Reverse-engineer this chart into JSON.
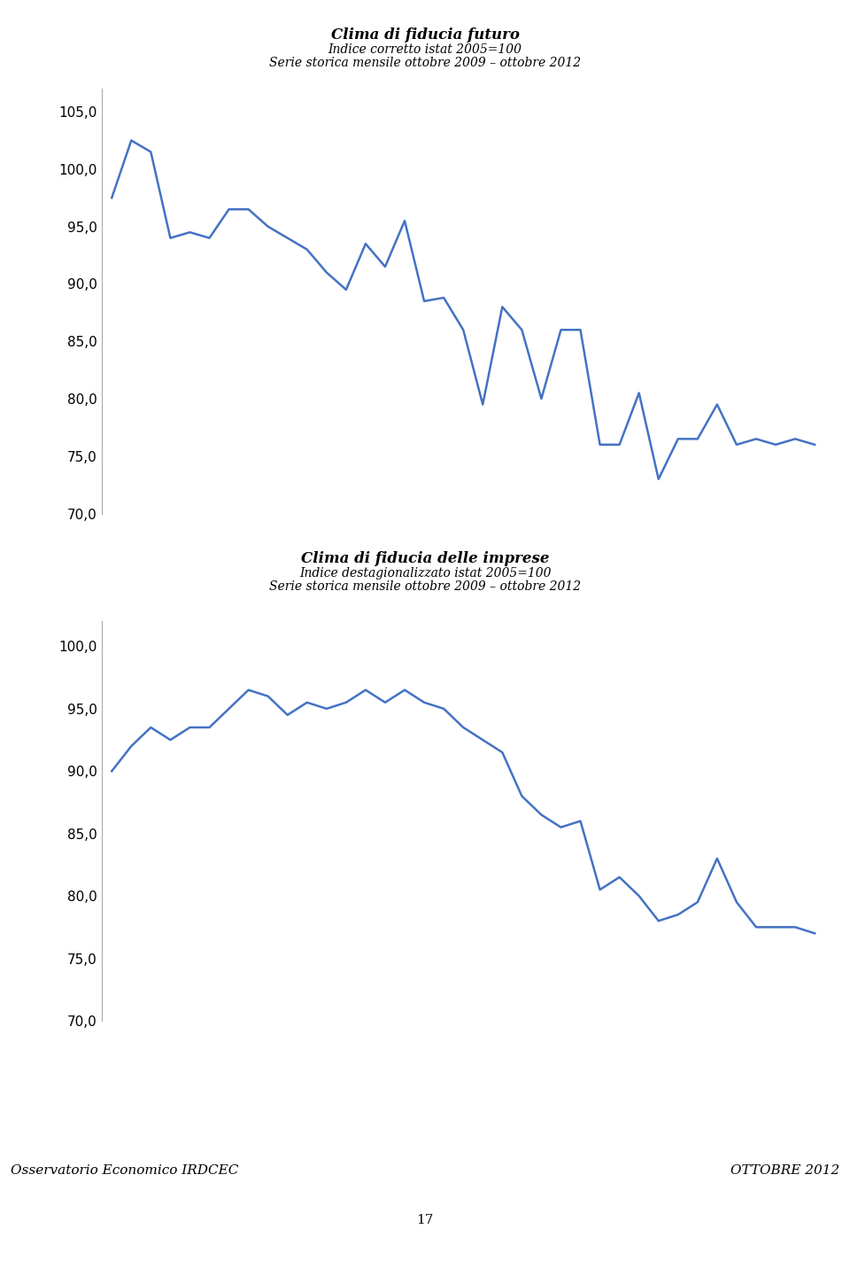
{
  "title1_line1": "Clima di fiducia futuro",
  "title1_line2": "Indice corretto istat 2005=100",
  "title1_line3": "Serie storica mensile ottobre 2009 – ottobre 2012",
  "title2_line1": "Clima di fiducia delle imprese",
  "title2_line2": "Indice destagionalizzato istat 2005=100",
  "title2_line3": "Serie storica mensile ottobre 2009 – ottobre 2012",
  "line_color": "#4472C4",
  "line_width": 1.8,
  "ylim1": [
    70.0,
    107.0
  ],
  "ylim2": [
    70.0,
    102.0
  ],
  "yticks1": [
    70.0,
    75.0,
    80.0,
    85.0,
    90.0,
    95.0,
    100.0,
    105.0
  ],
  "yticks2": [
    70.0,
    75.0,
    80.0,
    85.0,
    90.0,
    95.0,
    100.0
  ],
  "series1": [
    97.5,
    102.5,
    101.5,
    94.0,
    94.5,
    94.0,
    96.5,
    96.5,
    95.0,
    94.0,
    93.0,
    91.0,
    89.5,
    93.5,
    91.5,
    95.5,
    88.5,
    88.8,
    86.0,
    79.5,
    88.0,
    86.0,
    80.0,
    86.0,
    86.0,
    76.0,
    76.0,
    80.5,
    73.0,
    76.5,
    76.5,
    79.5,
    76.0,
    76.5,
    76.0,
    76.5,
    76.0
  ],
  "series2": [
    90.0,
    92.0,
    93.5,
    92.5,
    93.5,
    93.5,
    95.0,
    96.5,
    96.0,
    94.5,
    95.5,
    95.0,
    95.5,
    96.5,
    95.5,
    96.5,
    95.5,
    95.0,
    93.5,
    92.5,
    91.5,
    88.0,
    86.5,
    85.5,
    86.0,
    80.5,
    81.5,
    80.0,
    78.0,
    78.5,
    79.5,
    83.0,
    79.5,
    77.5,
    77.5,
    77.5,
    77.0
  ],
  "footer_left": "Osservatorio Economico IRDCEC",
  "footer_right": "OTTOBRE 2012",
  "footer_bg": "#FFFF00",
  "page_number": "17",
  "background_color": "#FFFFFF",
  "spine_color": "#AAAAAA",
  "title1_fontsize": 12,
  "title2_fontsize": 12,
  "subtitle_fontsize": 10,
  "tick_fontsize": 11
}
